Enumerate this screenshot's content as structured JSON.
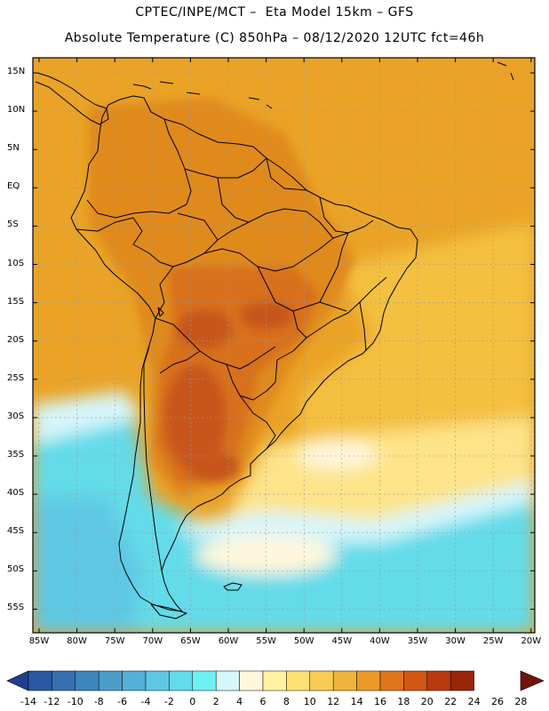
{
  "title_line1": "CPTEC/INPE/MCT –  Eta Model 15km – GFS",
  "title_line2": "Absolute Temperature (C) 850hPa – 08/12/2020 12UTC fct=46h",
  "lat_labels": [
    "15N",
    "10N",
    "5N",
    "EQ",
    "5S",
    "10S",
    "15S",
    "20S",
    "25S",
    "30S",
    "35S",
    "40S",
    "45S",
    "50S",
    "55S"
  ],
  "lon_labels": [
    "85W",
    "80W",
    "75W",
    "70W",
    "65W",
    "60W",
    "55W",
    "50W",
    "45W",
    "40W",
    "35W",
    "30W",
    "25W",
    "20W"
  ],
  "colorbar_labels": [
    "-14",
    "-12",
    "-10",
    "-8",
    "-6",
    "-4",
    "-2",
    "0",
    "2",
    "4",
    "6",
    "8",
    "10",
    "12",
    "14",
    "16",
    "18",
    "20",
    "22",
    "24",
    "26",
    "28"
  ],
  "colorbar_colors": [
    "#1f3f8f",
    "#2a57a0",
    "#3470af",
    "#3c86bc",
    "#4a9cc9",
    "#54b0d6",
    "#5ec8e4",
    "#63dbe9",
    "#6ff0f2",
    "#d6f6fa",
    "#fff7dc",
    "#fff3a0",
    "#fde273",
    "#f8cc55",
    "#f0b43c",
    "#e99a27",
    "#e0761c",
    "#d25614",
    "#b83a0e",
    "#98240a",
    "#6f1508"
  ],
  "map_colors": {
    "base_orange": "#eaa326",
    "deep_orange": "#e08a1e",
    "hot": "#d8701a",
    "hottest": "#c8561c",
    "yellow": "#f4c040",
    "pale_yellow": "#fde48a",
    "cream": "#fff7dc",
    "ice": "#d6f6fa",
    "cyan": "#63dbe9",
    "deep_cyan": "#5ec8e4",
    "land_line": "#000000",
    "grid": "#9a9a9a"
  }
}
